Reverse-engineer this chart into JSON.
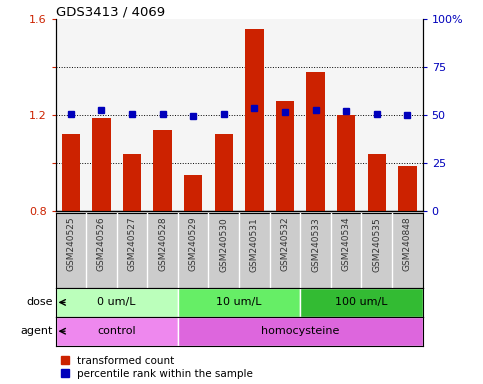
{
  "title": "GDS3413 / 4069",
  "samples": [
    "GSM240525",
    "GSM240526",
    "GSM240527",
    "GSM240528",
    "GSM240529",
    "GSM240530",
    "GSM240531",
    "GSM240532",
    "GSM240533",
    "GSM240534",
    "GSM240535",
    "GSM240848"
  ],
  "red_values": [
    1.12,
    1.19,
    1.04,
    1.14,
    0.95,
    1.12,
    1.56,
    1.26,
    1.38,
    1.2,
    1.04,
    0.99
  ],
  "blue_values": [
    50.5,
    52.5,
    50.5,
    50.5,
    49.5,
    50.5,
    53.5,
    51.5,
    52.5,
    52.0,
    50.5,
    49.9
  ],
  "ylim_left": [
    0.8,
    1.6
  ],
  "ylim_right": [
    0,
    100
  ],
  "yticks_left": [
    0.8,
    1.0,
    1.2,
    1.4,
    1.6
  ],
  "yticks_right": [
    0,
    25,
    50,
    75,
    100
  ],
  "ytick_labels_left": [
    "0.8",
    "",
    "1.2",
    "",
    "1.6"
  ],
  "ytick_labels_right": [
    "0",
    "25",
    "50",
    "75",
    "100%"
  ],
  "red_color": "#cc2200",
  "blue_color": "#0000bb",
  "bar_width": 0.6,
  "dose_groups": [
    {
      "label": "0 um/L",
      "start": 0,
      "end": 4,
      "color": "#bbffbb"
    },
    {
      "label": "10 um/L",
      "start": 4,
      "end": 8,
      "color": "#66ee66"
    },
    {
      "label": "100 um/L",
      "start": 8,
      "end": 12,
      "color": "#33bb33"
    }
  ],
  "agent_groups": [
    {
      "label": "control",
      "start": 0,
      "end": 4,
      "color": "#ee88ee"
    },
    {
      "label": "homocysteine",
      "start": 4,
      "end": 12,
      "color": "#dd66dd"
    }
  ],
  "dose_label": "dose",
  "agent_label": "agent",
  "legend_red": "transformed count",
  "legend_blue": "percentile rank within the sample",
  "plot_bg": "#f5f5f5",
  "tick_area_color": "#cccccc"
}
